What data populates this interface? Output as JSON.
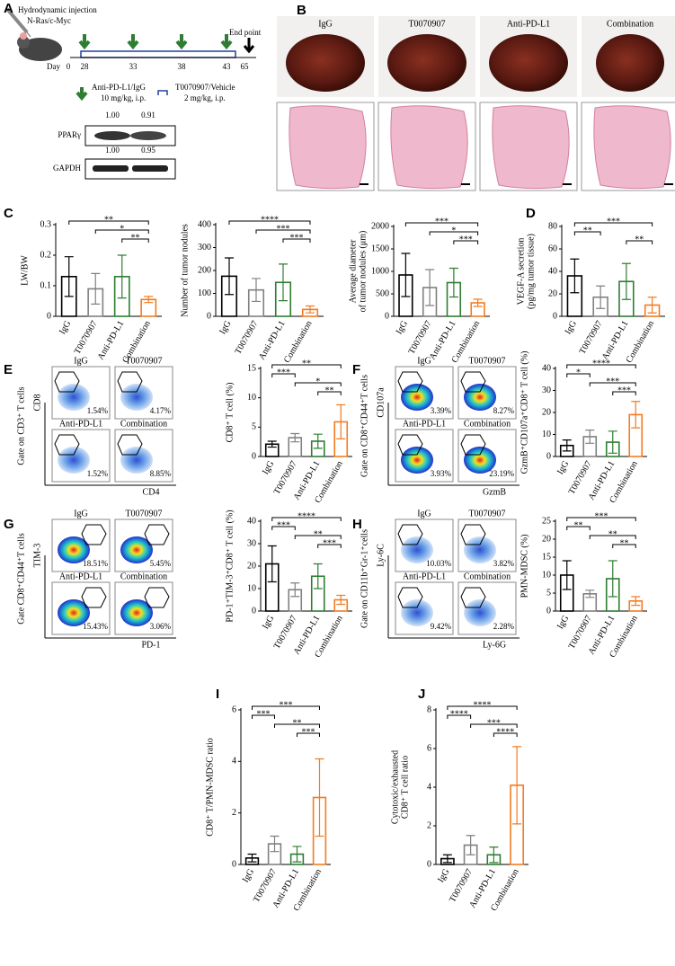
{
  "panel_letters": [
    "A",
    "B",
    "C",
    "D",
    "E",
    "F",
    "G",
    "H",
    "I",
    "J"
  ],
  "panel_a": {
    "injection": "Hydrodynamic injection",
    "model": "N-Ras/c-Myc",
    "day_label": "Day",
    "days": [
      0,
      28,
      33,
      38,
      43,
      65
    ],
    "end_label": "End point",
    "legend": [
      {
        "drug": "Anti-PD-L1/IgG",
        "dose": "10 mg/kg, i.p."
      },
      {
        "drug": "T0070907/Vehicle",
        "dose": "2 mg/kg, i.p."
      }
    ],
    "blot": [
      {
        "protein": "PPARγ",
        "ratios": [
          "1.00",
          "0.91"
        ]
      },
      {
        "protein": "GAPDH",
        "ratios": [
          "1.00",
          "0.95"
        ]
      }
    ]
  },
  "panel_b": {
    "groups": [
      "IgG",
      "T0070907",
      "Anti-PD-L1",
      "Combination"
    ]
  },
  "chart_data": [
    {
      "type": "bar",
      "ylabel": [
        "LW/BW"
      ],
      "categories": [
        "IgG",
        "T0070907",
        "Anti-PD-L1",
        "Combination"
      ],
      "values": [
        0.13,
        0.09,
        0.13,
        0.055
      ],
      "errors": [
        0.065,
        0.05,
        0.07,
        0.01
      ],
      "colors": [
        "#000000",
        "#808080",
        "#2e7d32",
        "#f47b20"
      ],
      "ylim": [
        0,
        0.3
      ],
      "yticks": [
        0,
        0.1,
        0.2,
        0.3
      ],
      "significance": [
        {
          "pair": [
            0,
            3
          ],
          "label": "**"
        },
        {
          "pair": [
            1,
            3
          ],
          "label": "*"
        },
        {
          "pair": [
            2,
            3
          ],
          "label": "**"
        }
      ]
    },
    {
      "type": "bar",
      "ylabel": [
        "Number of tumor nodules"
      ],
      "categories": [
        "IgG",
        "T0070907",
        "Anti-PD-L1",
        "Combination"
      ],
      "values": [
        175,
        115,
        148,
        30
      ],
      "errors": [
        80,
        50,
        80,
        15
      ],
      "colors": [
        "#000000",
        "#808080",
        "#2e7d32",
        "#f47b20"
      ],
      "ylim": [
        0,
        400
      ],
      "yticks": [
        0,
        100,
        200,
        300,
        400
      ],
      "significance": [
        {
          "pair": [
            0,
            3
          ],
          "label": "****"
        },
        {
          "pair": [
            1,
            3
          ],
          "label": "***"
        },
        {
          "pair": [
            2,
            3
          ],
          "label": "***"
        }
      ]
    },
    {
      "type": "bar",
      "ylabel": [
        "Average diameter",
        "of tumor nodules (μm)"
      ],
      "categories": [
        "IgG",
        "T0070907",
        "Anti-PD-L1",
        "Combination"
      ],
      "values": [
        920,
        640,
        750,
        300
      ],
      "errors": [
        480,
        400,
        320,
        80
      ],
      "colors": [
        "#000000",
        "#808080",
        "#2e7d32",
        "#f47b20"
      ],
      "ylim": [
        0,
        2000
      ],
      "yticks": [
        0,
        500,
        1000,
        1500,
        2000
      ],
      "significance": [
        {
          "pair": [
            0,
            3
          ],
          "label": "***"
        },
        {
          "pair": [
            1,
            3
          ],
          "label": "*"
        },
        {
          "pair": [
            2,
            3
          ],
          "label": "***"
        }
      ]
    },
    {
      "type": "bar",
      "ylabel": [
        "VEGF-A secretion",
        "(pg/mg tumor tissue)"
      ],
      "categories": [
        "IgG",
        "T0070907",
        "Anti-PD-L1",
        "Combination"
      ],
      "values": [
        36,
        17,
        31,
        10
      ],
      "errors": [
        15,
        10,
        16,
        7
      ],
      "colors": [
        "#000000",
        "#808080",
        "#2e7d32",
        "#f47b20"
      ],
      "ylim": [
        0,
        80
      ],
      "yticks": [
        0,
        20,
        40,
        60,
        80
      ],
      "significance": [
        {
          "pair": [
            0,
            3
          ],
          "label": "***"
        },
        {
          "pair": [
            0,
            1
          ],
          "label": "**"
        },
        {
          "pair": [
            2,
            3
          ],
          "label": "**"
        }
      ]
    },
    {
      "type": "bar",
      "ylabel": [
        "CD8⁺ T cell (%)"
      ],
      "categories": [
        "IgG",
        "T0070907",
        "Anti-PD-L1",
        "Combination"
      ],
      "values": [
        2.1,
        3.2,
        2.6,
        5.9
      ],
      "errors": [
        0.5,
        0.7,
        1.2,
        2.9
      ],
      "colors": [
        "#000000",
        "#808080",
        "#2e7d32",
        "#f47b20"
      ],
      "ylim": [
        0,
        15
      ],
      "yticks": [
        0,
        5,
        10,
        15
      ],
      "significance": [
        {
          "pair": [
            0,
            3
          ],
          "label": "**"
        },
        {
          "pair": [
            0,
            1
          ],
          "label": "***"
        },
        {
          "pair": [
            1,
            3
          ],
          "label": "*"
        },
        {
          "pair": [
            2,
            3
          ],
          "label": "**"
        }
      ]
    },
    {
      "type": "bar",
      "ylabel": [
        "GzmB⁺CD107a⁺CD8⁺ T cell (%)"
      ],
      "categories": [
        "IgG",
        "T0070907",
        "Anti-PD-L1",
        "Combination"
      ],
      "values": [
        5,
        9,
        6.5,
        19
      ],
      "errors": [
        2.5,
        3,
        5,
        6
      ],
      "colors": [
        "#000000",
        "#808080",
        "#2e7d32",
        "#f47b20"
      ],
      "ylim": [
        0,
        40
      ],
      "yticks": [
        0,
        10,
        20,
        30,
        40
      ],
      "significance": [
        {
          "pair": [
            0,
            3
          ],
          "label": "****"
        },
        {
          "pair": [
            0,
            1
          ],
          "label": "*"
        },
        {
          "pair": [
            1,
            3
          ],
          "label": "***"
        },
        {
          "pair": [
            2,
            3
          ],
          "label": "***"
        }
      ]
    },
    {
      "type": "bar",
      "ylabel": [
        "PD-1⁺TIM-3⁺CD8⁺ T cell (%)"
      ],
      "categories": [
        "IgG",
        "T0070907",
        "Anti-PD-L1",
        "Combination"
      ],
      "values": [
        21,
        9.5,
        15.5,
        5
      ],
      "errors": [
        8,
        3,
        5.5,
        2
      ],
      "colors": [
        "#000000",
        "#808080",
        "#2e7d32",
        "#f47b20"
      ],
      "ylim": [
        0,
        40
      ],
      "yticks": [
        0,
        10,
        20,
        30,
        40
      ],
      "significance": [
        {
          "pair": [
            0,
            3
          ],
          "label": "****"
        },
        {
          "pair": [
            0,
            1
          ],
          "label": "***"
        },
        {
          "pair": [
            1,
            3
          ],
          "label": "**"
        },
        {
          "pair": [
            2,
            3
          ],
          "label": "***"
        }
      ]
    },
    {
      "type": "bar",
      "ylabel": [
        "PMN-MDSC (%)"
      ],
      "categories": [
        "IgG",
        "T0070907",
        "Anti-PD-L1",
        "Combination"
      ],
      "values": [
        10,
        4.8,
        9,
        2.8
      ],
      "errors": [
        4,
        1,
        5,
        1.2
      ],
      "colors": [
        "#000000",
        "#808080",
        "#2e7d32",
        "#f47b20"
      ],
      "ylim": [
        0,
        25
      ],
      "yticks": [
        0,
        5,
        10,
        15,
        20,
        25
      ],
      "significance": [
        {
          "pair": [
            0,
            3
          ],
          "label": "***"
        },
        {
          "pair": [
            0,
            1
          ],
          "label": "**"
        },
        {
          "pair": [
            1,
            3
          ],
          "label": "**"
        },
        {
          "pair": [
            2,
            3
          ],
          "label": "**"
        }
      ]
    },
    {
      "type": "bar",
      "ylabel": [
        "CD8⁺ T/PMN-MDSC ratio"
      ],
      "categories": [
        "IgG",
        "T0070907",
        "Anti-PD-L1",
        "Combination"
      ],
      "values": [
        0.25,
        0.8,
        0.4,
        2.6
      ],
      "errors": [
        0.15,
        0.3,
        0.3,
        1.5
      ],
      "colors": [
        "#000000",
        "#808080",
        "#2e7d32",
        "#f47b20"
      ],
      "ylim": [
        0,
        6
      ],
      "yticks": [
        0,
        2,
        4,
        6
      ],
      "significance": [
        {
          "pair": [
            0,
            3
          ],
          "label": "***"
        },
        {
          "pair": [
            0,
            1
          ],
          "label": "***"
        },
        {
          "pair": [
            1,
            3
          ],
          "label": "**"
        },
        {
          "pair": [
            2,
            3
          ],
          "label": "***"
        }
      ]
    },
    {
      "type": "bar",
      "ylabel": [
        "Cytotoxic/exhausted",
        "CD8⁺ T cell ratio"
      ],
      "categories": [
        "IgG",
        "T0070907",
        "Anti-PD-L1",
        "Combination"
      ],
      "values": [
        0.3,
        1.0,
        0.5,
        4.1
      ],
      "errors": [
        0.2,
        0.5,
        0.4,
        2.0
      ],
      "colors": [
        "#000000",
        "#808080",
        "#2e7d32",
        "#f47b20"
      ],
      "ylim": [
        0,
        8
      ],
      "yticks": [
        0,
        2,
        4,
        6,
        8
      ],
      "significance": [
        {
          "pair": [
            0,
            3
          ],
          "label": "****"
        },
        {
          "pair": [
            0,
            1
          ],
          "label": "****"
        },
        {
          "pair": [
            1,
            3
          ],
          "label": "***"
        },
        {
          "pair": [
            2,
            3
          ],
          "label": "****"
        }
      ]
    }
  ],
  "flow_panels": [
    {
      "gate": "Gate on CD3⁺ T cells",
      "y_marker": "CD8",
      "x_marker": "CD4",
      "plots": [
        {
          "name": "IgG",
          "percent": "1.54%"
        },
        {
          "name": "T0070907",
          "percent": "4.17%"
        },
        {
          "name": "Anti-PD-L1",
          "percent": "1.52%"
        },
        {
          "name": "Combination",
          "percent": "8.85%"
        }
      ]
    },
    {
      "gate": "Gate on CD8⁺CD44⁺T cells",
      "y_marker": "CD107a",
      "x_marker": "GzmB",
      "plots": [
        {
          "name": "IgG",
          "percent": "3.39%"
        },
        {
          "name": "T0070907",
          "percent": "8.27%"
        },
        {
          "name": "Anti-PD-L1",
          "percent": "3.93%"
        },
        {
          "name": "Combination",
          "percent": "23.19%"
        }
      ]
    },
    {
      "gate": "Gate CD8⁺CD44⁺T cells",
      "y_marker": "TIM-3",
      "x_marker": "PD-1",
      "plots": [
        {
          "name": "IgG",
          "percent": "18.51%"
        },
        {
          "name": "T0070907",
          "percent": "5.45%"
        },
        {
          "name": "Anti-PD-L1",
          "percent": "15.43%"
        },
        {
          "name": "Combination",
          "percent": "3.06%"
        }
      ]
    },
    {
      "gate": "Gate on CD11b⁺Gr-1⁺cells",
      "y_marker": "Ly-6C",
      "x_marker": "Ly-6G",
      "plots": [
        {
          "name": "IgG",
          "percent": "10.03%"
        },
        {
          "name": "T0070907",
          "percent": "3.82%"
        },
        {
          "name": "Anti-PD-L1",
          "percent": "9.42%"
        },
        {
          "name": "Combination",
          "percent": "2.28%"
        }
      ]
    }
  ]
}
